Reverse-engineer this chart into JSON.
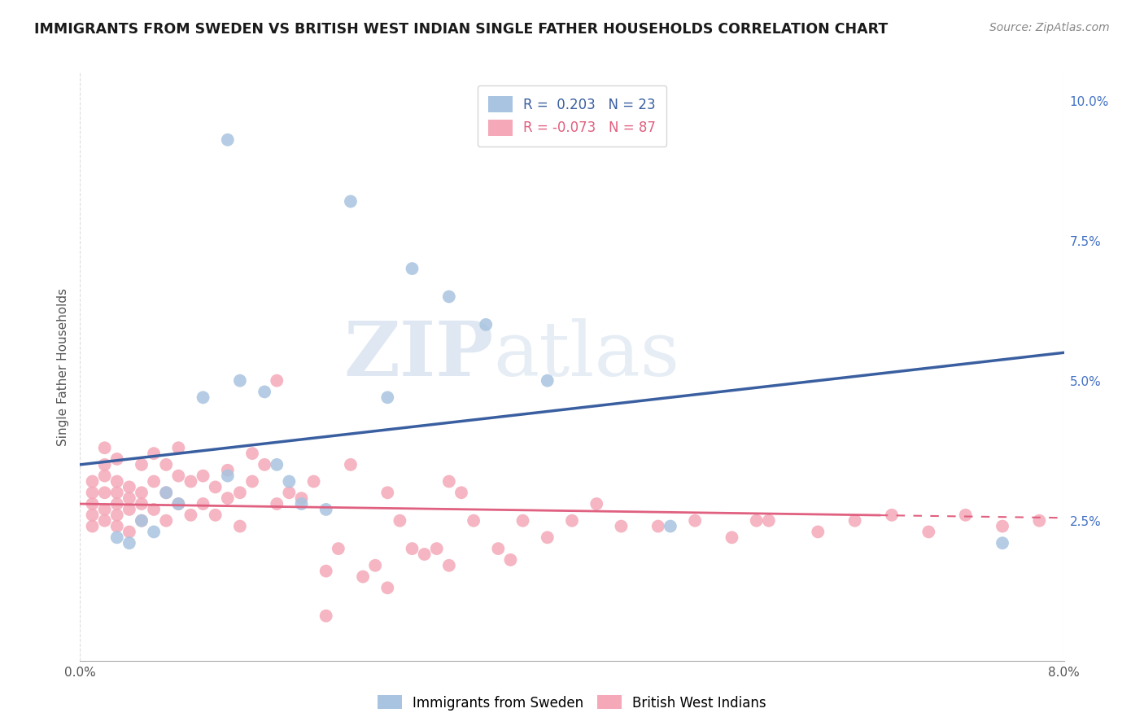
{
  "title": "IMMIGRANTS FROM SWEDEN VS BRITISH WEST INDIAN SINGLE FATHER HOUSEHOLDS CORRELATION CHART",
  "source": "Source: ZipAtlas.com",
  "ylabel": "Single Father Households",
  "xlim": [
    0.0,
    0.08
  ],
  "ylim": [
    0.0,
    0.105
  ],
  "yticks_right": [
    0.025,
    0.05,
    0.075,
    0.1
  ],
  "yticklabels_right": [
    "2.5%",
    "5.0%",
    "7.5%",
    "10.0%"
  ],
  "sweden_color": "#a8c4e0",
  "bwi_color": "#f4a8b8",
  "sweden_line_color": "#3a5fa0",
  "bwi_line_color": "#e06080",
  "sweden_R": 0.203,
  "sweden_N": 23,
  "bwi_R": -0.073,
  "bwi_N": 87,
  "watermark_zip": "ZIP",
  "watermark_atlas": "atlas",
  "background_color": "#ffffff",
  "grid_color": "#cccccc",
  "legend_R_color": "#3a5fa0",
  "legend_bwi_color": "#e06080",
  "legend_label_sweden": "Immigrants from Sweden",
  "legend_label_bwi": "British West Indians",
  "sweden_line_y0": 0.035,
  "sweden_line_y1": 0.055,
  "bwi_line_y0": 0.028,
  "bwi_line_y1": 0.0255,
  "sweden_x": [
    0.012,
    0.022,
    0.027,
    0.03,
    0.033,
    0.038,
    0.003,
    0.004,
    0.005,
    0.006,
    0.007,
    0.008,
    0.01,
    0.012,
    0.013,
    0.015,
    0.016,
    0.017,
    0.018,
    0.02,
    0.025,
    0.048,
    0.075
  ],
  "sweden_y": [
    0.093,
    0.082,
    0.07,
    0.065,
    0.06,
    0.05,
    0.022,
    0.021,
    0.025,
    0.023,
    0.03,
    0.028,
    0.047,
    0.033,
    0.05,
    0.048,
    0.035,
    0.032,
    0.028,
    0.027,
    0.047,
    0.024,
    0.021
  ],
  "bwi_x": [
    0.001,
    0.001,
    0.001,
    0.001,
    0.001,
    0.002,
    0.002,
    0.002,
    0.002,
    0.002,
    0.002,
    0.003,
    0.003,
    0.003,
    0.003,
    0.003,
    0.003,
    0.004,
    0.004,
    0.004,
    0.004,
    0.005,
    0.005,
    0.005,
    0.005,
    0.006,
    0.006,
    0.006,
    0.007,
    0.007,
    0.007,
    0.008,
    0.008,
    0.008,
    0.009,
    0.009,
    0.01,
    0.01,
    0.011,
    0.011,
    0.012,
    0.012,
    0.013,
    0.013,
    0.014,
    0.014,
    0.015,
    0.016,
    0.016,
    0.017,
    0.018,
    0.019,
    0.02,
    0.021,
    0.022,
    0.023,
    0.024,
    0.025,
    0.026,
    0.027,
    0.028,
    0.029,
    0.03,
    0.031,
    0.032,
    0.034,
    0.036,
    0.038,
    0.04,
    0.042,
    0.044,
    0.047,
    0.05,
    0.053,
    0.056,
    0.06,
    0.063,
    0.066,
    0.069,
    0.072,
    0.075,
    0.078,
    0.055,
    0.035,
    0.02,
    0.025,
    0.03
  ],
  "bwi_y": [
    0.028,
    0.03,
    0.026,
    0.032,
    0.024,
    0.03,
    0.027,
    0.033,
    0.035,
    0.025,
    0.038,
    0.028,
    0.03,
    0.026,
    0.032,
    0.036,
    0.024,
    0.027,
    0.029,
    0.031,
    0.023,
    0.028,
    0.025,
    0.03,
    0.035,
    0.027,
    0.032,
    0.037,
    0.025,
    0.03,
    0.035,
    0.028,
    0.033,
    0.038,
    0.026,
    0.032,
    0.028,
    0.033,
    0.026,
    0.031,
    0.029,
    0.034,
    0.024,
    0.03,
    0.032,
    0.037,
    0.035,
    0.028,
    0.05,
    0.03,
    0.029,
    0.032,
    0.008,
    0.02,
    0.035,
    0.015,
    0.017,
    0.03,
    0.025,
    0.02,
    0.019,
    0.02,
    0.032,
    0.03,
    0.025,
    0.02,
    0.025,
    0.022,
    0.025,
    0.028,
    0.024,
    0.024,
    0.025,
    0.022,
    0.025,
    0.023,
    0.025,
    0.026,
    0.023,
    0.026,
    0.024,
    0.025,
    0.025,
    0.018,
    0.016,
    0.013,
    0.017
  ]
}
